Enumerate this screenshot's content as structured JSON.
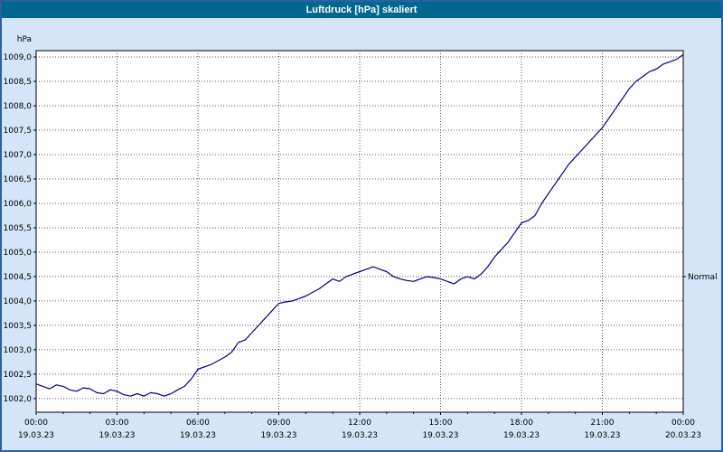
{
  "window": {
    "title": "Luftdruck [hPa] skaliert"
  },
  "chart_data": {
    "type": "line",
    "title": "Luftdruck [hPa] skaliert",
    "grid": true,
    "colors": {
      "series": "#00008b",
      "grid": "#555555",
      "frame": "#000000",
      "plot_bg": "#ffffff",
      "canvas_bg": "#d3e5f6",
      "titlebar": "#00688e"
    },
    "y_axis": {
      "unit": "hPa",
      "range": [
        1001.72,
        1009.13
      ],
      "ticks": [
        {
          "value": 1002.0,
          "label": "1002,0"
        },
        {
          "value": 1002.5,
          "label": "1002,5"
        },
        {
          "value": 1003.0,
          "label": "1003,0"
        },
        {
          "value": 1003.5,
          "label": "1003,5"
        },
        {
          "value": 1004.0,
          "label": "1004,0"
        },
        {
          "value": 1004.5,
          "label": "1004,5"
        },
        {
          "value": 1005.0,
          "label": "1005,0"
        },
        {
          "value": 1005.5,
          "label": "1005,5"
        },
        {
          "value": 1006.0,
          "label": "1006,0"
        },
        {
          "value": 1006.5,
          "label": "1006,5"
        },
        {
          "value": 1007.0,
          "label": "1007,0"
        },
        {
          "value": 1007.5,
          "label": "1007,5"
        },
        {
          "value": 1008.0,
          "label": "1008,0"
        },
        {
          "value": 1008.5,
          "label": "1008,5"
        },
        {
          "value": 1009.0,
          "label": "1009,0"
        }
      ]
    },
    "x_axis": {
      "range_hours": [
        0,
        24
      ],
      "ticks": [
        {
          "hour": 0,
          "time": "00:00",
          "date": "19.03.23"
        },
        {
          "hour": 3,
          "time": "03:00",
          "date": "19.03.23"
        },
        {
          "hour": 6,
          "time": "06:00",
          "date": "19.03.23"
        },
        {
          "hour": 9,
          "time": "09:00",
          "date": "19.03.23"
        },
        {
          "hour": 12,
          "time": "12:00",
          "date": "19.03.23"
        },
        {
          "hour": 15,
          "time": "15:00",
          "date": "19.03.23"
        },
        {
          "hour": 18,
          "time": "18:00",
          "date": "19.03.23"
        },
        {
          "hour": 21,
          "time": "21:00",
          "date": "19.03.23"
        },
        {
          "hour": 24,
          "time": "00:00",
          "date": "20.03.23"
        }
      ]
    },
    "normal_marker": {
      "label": "Normal",
      "value": 1004.5
    },
    "series": [
      {
        "name": "Luftdruck",
        "color": "#00008b",
        "points": [
          [
            0.0,
            1002.3
          ],
          [
            0.25,
            1002.25
          ],
          [
            0.5,
            1002.2
          ],
          [
            0.75,
            1002.28
          ],
          [
            1.0,
            1002.25
          ],
          [
            1.25,
            1002.18
          ],
          [
            1.5,
            1002.15
          ],
          [
            1.75,
            1002.22
          ],
          [
            2.0,
            1002.2
          ],
          [
            2.25,
            1002.12
          ],
          [
            2.5,
            1002.1
          ],
          [
            2.75,
            1002.18
          ],
          [
            3.0,
            1002.15
          ],
          [
            3.25,
            1002.08
          ],
          [
            3.5,
            1002.05
          ],
          [
            3.75,
            1002.1
          ],
          [
            4.0,
            1002.05
          ],
          [
            4.25,
            1002.12
          ],
          [
            4.5,
            1002.1
          ],
          [
            4.75,
            1002.05
          ],
          [
            5.0,
            1002.1
          ],
          [
            5.25,
            1002.18
          ],
          [
            5.5,
            1002.25
          ],
          [
            5.75,
            1002.4
          ],
          [
            6.0,
            1002.6
          ],
          [
            6.5,
            1002.7
          ],
          [
            7.0,
            1002.85
          ],
          [
            7.25,
            1002.95
          ],
          [
            7.5,
            1003.15
          ],
          [
            7.75,
            1003.2
          ],
          [
            8.0,
            1003.35
          ],
          [
            8.5,
            1003.65
          ],
          [
            8.75,
            1003.8
          ],
          [
            9.0,
            1003.95
          ],
          [
            9.25,
            1003.98
          ],
          [
            9.5,
            1004.0
          ],
          [
            10.0,
            1004.1
          ],
          [
            10.5,
            1004.25
          ],
          [
            10.75,
            1004.35
          ],
          [
            11.0,
            1004.45
          ],
          [
            11.25,
            1004.4
          ],
          [
            11.5,
            1004.5
          ],
          [
            11.75,
            1004.55
          ],
          [
            12.0,
            1004.6
          ],
          [
            12.25,
            1004.65
          ],
          [
            12.5,
            1004.7
          ],
          [
            12.75,
            1004.65
          ],
          [
            13.0,
            1004.6
          ],
          [
            13.25,
            1004.5
          ],
          [
            13.5,
            1004.45
          ],
          [
            13.75,
            1004.42
          ],
          [
            14.0,
            1004.4
          ],
          [
            14.25,
            1004.45
          ],
          [
            14.5,
            1004.5
          ],
          [
            14.75,
            1004.48
          ],
          [
            15.0,
            1004.45
          ],
          [
            15.25,
            1004.4
          ],
          [
            15.5,
            1004.35
          ],
          [
            15.75,
            1004.45
          ],
          [
            16.0,
            1004.5
          ],
          [
            16.25,
            1004.45
          ],
          [
            16.5,
            1004.55
          ],
          [
            16.75,
            1004.7
          ],
          [
            17.0,
            1004.9
          ],
          [
            17.25,
            1005.05
          ],
          [
            17.5,
            1005.2
          ],
          [
            17.75,
            1005.4
          ],
          [
            18.0,
            1005.6
          ],
          [
            18.25,
            1005.65
          ],
          [
            18.5,
            1005.75
          ],
          [
            18.75,
            1006.0
          ],
          [
            19.0,
            1006.2
          ],
          [
            19.25,
            1006.4
          ],
          [
            19.5,
            1006.6
          ],
          [
            19.75,
            1006.8
          ],
          [
            20.0,
            1006.95
          ],
          [
            20.25,
            1007.1
          ],
          [
            20.5,
            1007.25
          ],
          [
            20.75,
            1007.4
          ],
          [
            21.0,
            1007.55
          ],
          [
            21.25,
            1007.75
          ],
          [
            21.5,
            1007.95
          ],
          [
            21.75,
            1008.15
          ],
          [
            22.0,
            1008.35
          ],
          [
            22.25,
            1008.5
          ],
          [
            22.5,
            1008.6
          ],
          [
            22.75,
            1008.7
          ],
          [
            23.0,
            1008.75
          ],
          [
            23.25,
            1008.85
          ],
          [
            23.5,
            1008.9
          ],
          [
            23.75,
            1008.95
          ],
          [
            24.0,
            1009.05
          ]
        ]
      }
    ]
  }
}
